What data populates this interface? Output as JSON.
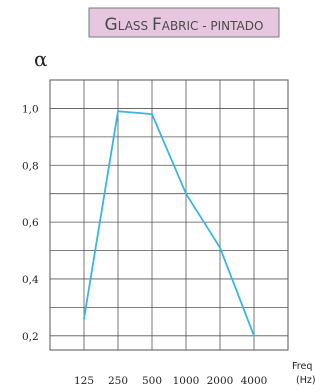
{
  "chart_data": {
    "type": "line",
    "title": "Glass Fabric - pintado",
    "ylabel": "α",
    "xlabel_line1": "Freq",
    "xlabel_line2": "(Hz)",
    "categories": [
      "125",
      "250",
      "500",
      "1000",
      "2000",
      "4000"
    ],
    "x_tick_labels": [
      "125",
      "250",
      "500",
      "1000",
      "2000",
      "4000"
    ],
    "y_tick_labels": [
      "1,0",
      "0,8",
      "0,6",
      "0,4",
      "0,2"
    ],
    "y_ticks": [
      1.0,
      0.8,
      0.6,
      0.4,
      0.2
    ],
    "ylim": [
      0.15,
      1.1
    ],
    "grid": true,
    "series": [
      {
        "values": [
          0.26,
          0.99,
          0.98,
          0.7,
          0.51,
          0.2
        ]
      }
    ],
    "colors": {
      "line": "#39b6de",
      "grid": "#555555",
      "title_bg": "#e6c7df",
      "title_border": "#7a7a7a"
    }
  }
}
